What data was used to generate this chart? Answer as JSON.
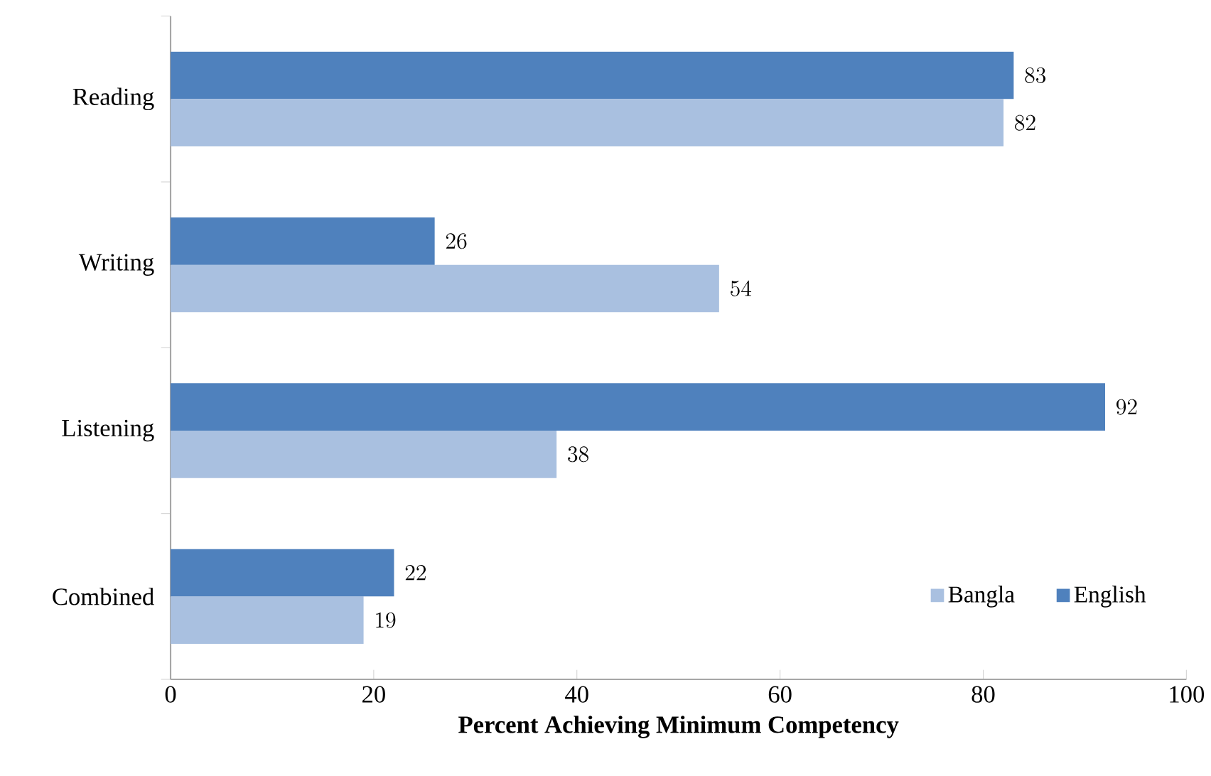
{
  "chart_data": {
    "type": "bar",
    "orientation": "horizontal",
    "xlabel": "Percent Achieving Minimum Competency",
    "categories": [
      "Reading",
      "Writing",
      "Listening",
      "Combined"
    ],
    "series": [
      {
        "name": "Bangla",
        "color": "#a9c0e0",
        "values": [
          82,
          54,
          38,
          19
        ]
      },
      {
        "name": "English",
        "color": "#4f81bd",
        "values": [
          83,
          26,
          92,
          22
        ]
      }
    ],
    "xlim": [
      0,
      100
    ],
    "xticks": [
      0,
      20,
      40,
      60,
      80,
      100
    ],
    "data_labels": true,
    "legend": "bottom right",
    "grid": false
  }
}
